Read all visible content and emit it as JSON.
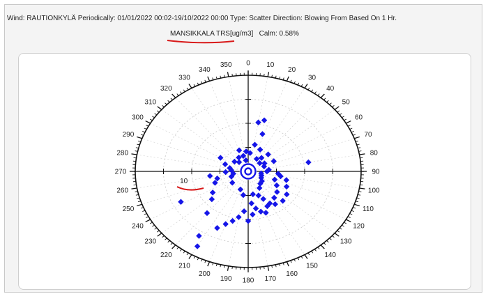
{
  "header": {
    "line1": "Wind: RAUTIONKYLÄ  Periodically: 01/01/2022 00:02-19/10/2022 00:00  Type: Scatter Direction: Blowing From Based On 1 Hr.",
    "station": "MANSIKKALA TRS[ug/m3]",
    "calm": "Calm: 0.58%"
  },
  "chart_data": {
    "type": "scatter",
    "coordinate_system": "polar",
    "angle_ticks": [
      "0",
      "10",
      "20",
      "30",
      "40",
      "50",
      "60",
      "70",
      "80",
      "90",
      "100",
      "110",
      "120",
      "130",
      "140",
      "150",
      "160",
      "170",
      "180",
      "190",
      "200",
      "210",
      "220",
      "230",
      "240",
      "250",
      "260",
      "270",
      "280",
      "290",
      "300",
      "310",
      "320",
      "330",
      "340",
      "350"
    ],
    "radial_tick_labels": [
      "10"
    ],
    "radial_rings": 3,
    "radial_max": 12,
    "series_color": "#1515e8",
    "points": [
      {
        "dir": 10,
        "r": 6.2
      },
      {
        "dir": 15,
        "r": 6.6
      },
      {
        "dir": 18,
        "r": 4.9
      },
      {
        "dir": 12,
        "r": 3.4
      },
      {
        "dir": 25,
        "r": 3.0
      },
      {
        "dir": 5,
        "r": 2.3
      },
      {
        "dir": 355,
        "r": 2.5
      },
      {
        "dir": 345,
        "r": 2.0
      },
      {
        "dir": 30,
        "r": 1.8
      },
      {
        "dir": 40,
        "r": 2.2
      },
      {
        "dir": 50,
        "r": 1.6
      },
      {
        "dir": 60,
        "r": 2.0
      },
      {
        "dir": 70,
        "r": 1.8
      },
      {
        "dir": 80,
        "r": 6.5
      },
      {
        "dir": 85,
        "r": 2.2
      },
      {
        "dir": 90,
        "r": 2.0
      },
      {
        "dir": 95,
        "r": 3.2
      },
      {
        "dir": 100,
        "r": 3.5
      },
      {
        "dir": 105,
        "r": 4.2
      },
      {
        "dir": 110,
        "r": 3.0
      },
      {
        "dir": 115,
        "r": 4.5
      },
      {
        "dir": 120,
        "r": 3.5
      },
      {
        "dir": 125,
        "r": 5.0
      },
      {
        "dir": 130,
        "r": 4.0
      },
      {
        "dir": 135,
        "r": 5.2
      },
      {
        "dir": 140,
        "r": 4.3
      },
      {
        "dir": 145,
        "r": 5.0
      },
      {
        "dir": 150,
        "r": 4.6
      },
      {
        "dir": 155,
        "r": 4.8
      },
      {
        "dir": 160,
        "r": 5.5
      },
      {
        "dir": 165,
        "r": 5.2
      },
      {
        "dir": 170,
        "r": 4.7
      },
      {
        "dir": 175,
        "r": 5.4
      },
      {
        "dir": 180,
        "r": 6.2
      },
      {
        "dir": 185,
        "r": 5.0
      },
      {
        "dir": 190,
        "r": 5.8
      },
      {
        "dir": 195,
        "r": 6.4
      },
      {
        "dir": 200,
        "r": 7.0
      },
      {
        "dir": 205,
        "r": 7.8
      },
      {
        "dir": 210,
        "r": 10.8
      },
      {
        "dir": 213,
        "r": 9.6
      },
      {
        "dir": 220,
        "r": 6.8
      },
      {
        "dir": 228,
        "r": 5.2
      },
      {
        "dir": 235,
        "r": 4.6
      },
      {
        "dir": 242,
        "r": 8.1
      },
      {
        "dir": 248,
        "r": 3.8
      },
      {
        "dir": 255,
        "r": 3.4
      },
      {
        "dir": 262,
        "r": 4.1
      },
      {
        "dir": 268,
        "r": 2.4
      },
      {
        "dir": 275,
        "r": 1.8
      },
      {
        "dir": 282,
        "r": 2.0
      },
      {
        "dir": 290,
        "r": 2.6
      },
      {
        "dir": 300,
        "r": 3.4
      },
      {
        "dir": 310,
        "r": 1.9
      },
      {
        "dir": 320,
        "r": 1.5
      },
      {
        "dir": 330,
        "r": 2.0
      },
      {
        "dir": 340,
        "r": 2.8
      },
      {
        "dir": 350,
        "r": 1.4
      },
      {
        "dir": 120,
        "r": 1.6
      },
      {
        "dir": 150,
        "r": 2.4
      },
      {
        "dir": 160,
        "r": 3.2
      },
      {
        "dir": 170,
        "r": 2.9
      },
      {
        "dir": 140,
        "r": 2.0
      },
      {
        "dir": 130,
        "r": 1.9
      },
      {
        "dir": 110,
        "r": 1.5
      },
      {
        "dir": 100,
        "r": 1.4
      },
      {
        "dir": 190,
        "r": 3.0
      },
      {
        "dir": 200,
        "r": 2.4
      },
      {
        "dir": 230,
        "r": 2.2
      },
      {
        "dir": 250,
        "r": 1.9
      },
      {
        "dir": 260,
        "r": 1.6
      },
      {
        "dir": 65,
        "r": 3.0
      },
      {
        "dir": 45,
        "r": 3.0
      },
      {
        "dir": 175,
        "r": 4.0
      },
      {
        "dir": 155,
        "r": 3.8
      }
    ]
  }
}
